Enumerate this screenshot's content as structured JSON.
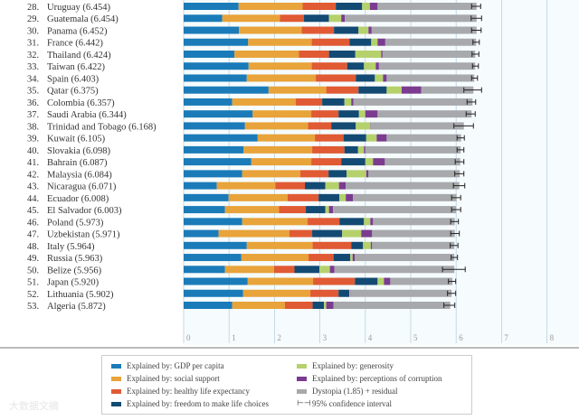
{
  "chart_data": {
    "type": "bar",
    "stacked": true,
    "orientation": "horizontal",
    "xlim": [
      0,
      8
    ],
    "x_ticks": [
      "0",
      "1",
      "2",
      "3",
      "4",
      "5",
      "6",
      "7",
      "8"
    ],
    "grid": true,
    "series_names": [
      "Explained by: GDP per capita",
      "Explained by: social support",
      "Explained by: healthy life expectancy",
      "Explained by: freedom to make life choices",
      "Explained by: generosity",
      "Explained by: perceptions of corruption",
      "Dystopia (1.85) + residual"
    ],
    "colors": [
      "#1a7bb8",
      "#e8a33a",
      "#e05a34",
      "#134a73",
      "#b5d16b",
      "#7b3b8f",
      "#a7a9ac"
    ],
    "ci_label": "95% confidence interval",
    "rows": [
      {
        "rank": "28.",
        "name": "Uruguay",
        "score": "6.454",
        "parts": [
          1.21,
          1.41,
          0.73,
          0.58,
          0.17,
          0.17,
          2.18
        ],
        "ci": [
          6.34,
          6.54
        ]
      },
      {
        "rank": "29.",
        "name": "Guatemala",
        "score": "6.454",
        "parts": [
          0.85,
          1.27,
          0.53,
          0.55,
          0.27,
          0.08,
          2.9
        ],
        "ci": [
          6.33,
          6.56
        ]
      },
      {
        "rank": "30.",
        "name": "Panama",
        "score": "6.452",
        "parts": [
          1.22,
          1.38,
          0.71,
          0.54,
          0.22,
          0.07,
          2.31
        ],
        "ci": [
          6.34,
          6.55
        ]
      },
      {
        "rank": "31.",
        "name": "France",
        "score": "6.442",
        "parts": [
          1.42,
          1.4,
          0.83,
          0.48,
          0.14,
          0.17,
          2.0
        ],
        "ci": [
          6.37,
          6.51
        ]
      },
      {
        "rank": "32.",
        "name": "Thailand",
        "score": "6.424",
        "parts": [
          1.12,
          1.42,
          0.66,
          0.58,
          0.57,
          0.03,
          2.04
        ],
        "ci": [
          6.35,
          6.5
        ]
      },
      {
        "rank": "33.",
        "name": "Taiwan",
        "score": "6.422",
        "parts": [
          1.43,
          1.39,
          0.78,
          0.37,
          0.26,
          0.07,
          2.12
        ],
        "ci": [
          6.36,
          6.49
        ]
      },
      {
        "rank": "34.",
        "name": "Spain",
        "score": "6.403",
        "parts": [
          1.39,
          1.52,
          0.88,
          0.42,
          0.18,
          0.08,
          1.93
        ],
        "ci": [
          6.34,
          6.47
        ]
      },
      {
        "rank": "35.",
        "name": "Qatar",
        "score": "6.375",
        "parts": [
          1.87,
          1.27,
          0.71,
          0.62,
          0.33,
          0.43,
          1.15
        ],
        "ci": [
          6.17,
          6.56
        ]
      },
      {
        "rank": "36.",
        "name": "Colombia",
        "score": "6.357",
        "parts": [
          1.07,
          1.4,
          0.58,
          0.49,
          0.15,
          0.05,
          2.62
        ],
        "ci": [
          6.24,
          6.43
        ]
      },
      {
        "rank": "37.",
        "name": "Saudi Arabia",
        "score": "6.344",
        "parts": [
          1.52,
          1.29,
          0.6,
          0.45,
          0.14,
          0.27,
          2.07
        ],
        "ci": [
          6.22,
          6.42
        ]
      },
      {
        "rank": "38.",
        "name": "Trinidad and Tobago",
        "score": "6.168",
        "parts": [
          1.35,
          1.39,
          0.51,
          0.54,
          0.32,
          0.01,
          2.05
        ],
        "ci": [
          5.95,
          6.38
        ]
      },
      {
        "rank": "39.",
        "name": "Kuwait",
        "score": "6.105",
        "parts": [
          1.63,
          1.26,
          0.63,
          0.5,
          0.23,
          0.22,
          1.64
        ],
        "ci": [
          6.02,
          6.18
        ]
      },
      {
        "rank": "40.",
        "name": "Slovakia",
        "score": "6.098",
        "parts": [
          1.32,
          1.51,
          0.71,
          0.3,
          0.13,
          0.03,
          2.1
        ],
        "ci": [
          6.02,
          6.17
        ]
      },
      {
        "rank": "41.",
        "name": "Bahrain",
        "score": "6.087",
        "parts": [
          1.49,
          1.32,
          0.66,
          0.53,
          0.17,
          0.26,
          1.66
        ],
        "ci": [
          5.98,
          6.17
        ]
      },
      {
        "rank": "42.",
        "name": "Malaysia",
        "score": "6.084",
        "parts": [
          1.29,
          1.28,
          0.62,
          0.4,
          0.43,
          0.05,
          2.01
        ],
        "ci": [
          5.97,
          6.17
        ]
      },
      {
        "rank": "43.",
        "name": "Nicaragua",
        "score": "6.071",
        "parts": [
          0.73,
          1.29,
          0.65,
          0.45,
          0.3,
          0.15,
          2.5
        ],
        "ci": [
          5.94,
          6.19
        ]
      },
      {
        "rank": "44.",
        "name": "Ecuador",
        "score": "6.008",
        "parts": [
          0.99,
          1.3,
          0.68,
          0.46,
          0.14,
          0.16,
          2.28
        ],
        "ci": [
          5.9,
          6.1
        ]
      },
      {
        "rank": "45.",
        "name": "El Salvador",
        "score": "6.003",
        "parts": [
          0.91,
          1.19,
          0.59,
          0.43,
          0.08,
          0.09,
          2.71
        ],
        "ci": [
          5.9,
          6.1
        ]
      },
      {
        "rank": "46.",
        "name": "Poland",
        "score": "5.973",
        "parts": [
          1.29,
          1.44,
          0.7,
          0.54,
          0.14,
          0.06,
          1.8
        ],
        "ci": [
          5.88,
          6.05
        ]
      },
      {
        "rank": "47.",
        "name": "Uzbekistan",
        "score": "5.971",
        "parts": [
          0.77,
          1.56,
          0.5,
          0.66,
          0.42,
          0.24,
          1.82
        ],
        "ci": [
          5.88,
          6.07
        ]
      },
      {
        "rank": "48.",
        "name": "Italy",
        "score": "5.964",
        "parts": [
          1.39,
          1.45,
          0.85,
          0.26,
          0.17,
          0.03,
          1.81
        ],
        "ci": [
          5.87,
          6.04
        ]
      },
      {
        "rank": "49.",
        "name": "Russia",
        "score": "5.963",
        "parts": [
          1.27,
          1.48,
          0.55,
          0.37,
          0.05,
          0.05,
          2.19
        ],
        "ci": [
          5.89,
          6.03
        ]
      },
      {
        "rank": "50.",
        "name": "Belize",
        "score": "5.956",
        "parts": [
          0.91,
          1.08,
          0.45,
          0.55,
          0.23,
          0.1,
          2.64
        ],
        "ci": [
          5.7,
          6.2
        ]
      },
      {
        "rank": "51.",
        "name": "Japan",
        "score": "5.920",
        "parts": [
          1.41,
          1.44,
          0.92,
          0.5,
          0.14,
          0.14,
          1.37
        ],
        "ci": [
          5.83,
          5.99
        ]
      },
      {
        "rank": "52.",
        "name": "Lithuania",
        "score": "5.902",
        "parts": [
          1.31,
          1.48,
          0.62,
          0.24,
          0.02,
          0.01,
          2.22
        ],
        "ci": [
          5.81,
          5.99
        ]
      },
      {
        "rank": "53.",
        "name": "Algeria",
        "score": "5.872",
        "parts": [
          1.07,
          1.16,
          0.61,
          0.25,
          0.05,
          0.16,
          2.57
        ],
        "ci": [
          5.73,
          5.97
        ]
      }
    ]
  },
  "watermark": "大数据文摘"
}
